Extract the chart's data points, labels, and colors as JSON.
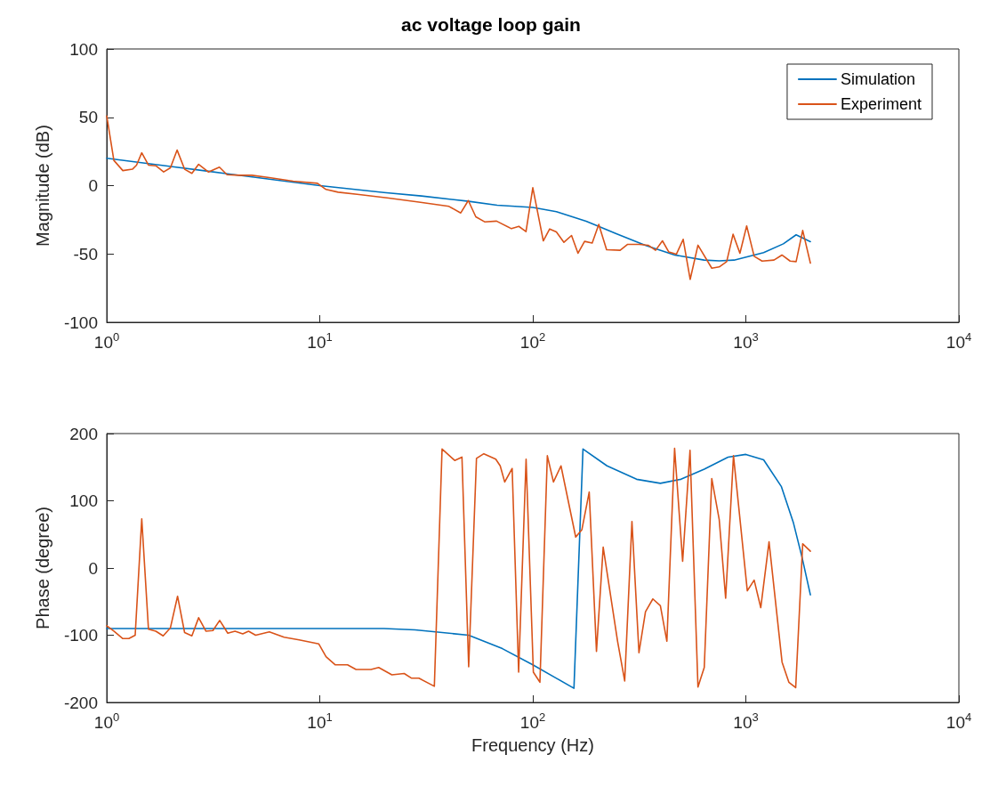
{
  "chart_data": [
    {
      "type": "line",
      "title": "ac voltage loop gain",
      "ylabel": "Magnitude (dB)",
      "log": "x",
      "legend": "top right",
      "xlim": [
        1,
        10000
      ],
      "xticks": [
        {
          "value": 1,
          "label": "10$^{0}$"
        },
        {
          "value": 10,
          "label": "10$^{1}$"
        },
        {
          "value": 100,
          "label": "10$^{2}$"
        },
        {
          "value": 1000,
          "label": "10$^{3}$"
        },
        {
          "value": 10000,
          "label": "10$^{4}$"
        }
      ],
      "ylim": [
        -100,
        100
      ],
      "yticks": [
        -100,
        -50,
        0,
        50,
        100
      ],
      "series": [
        {
          "name": "Simulation",
          "color": "#0072bd",
          "x": [
            1,
            2,
            3,
            5,
            10,
            20,
            30,
            50,
            68,
            100,
            129,
            178,
            245,
            337,
            464,
            637,
            750,
            880,
            1212,
            1500,
            1722,
            2009
          ],
          "values": [
            20,
            14,
            10.5,
            6,
            0,
            -5,
            -7.6,
            -11.5,
            -14.3,
            -16,
            -19,
            -26,
            -35,
            -43.6,
            -50.8,
            -54.5,
            -55,
            -54.5,
            -49,
            -42.6,
            -36,
            -41
          ]
        },
        {
          "name": "Experiment",
          "color": "#d95319",
          "x": [
            1,
            1.08,
            1.19,
            1.32,
            1.38,
            1.46,
            1.57,
            1.7,
            1.85,
            1.99,
            2.14,
            2.32,
            2.51,
            2.7,
            3,
            3.38,
            3.67,
            4.2,
            4.8,
            5.8,
            7.5,
            9.75,
            10.7,
            12.2,
            15.3,
            21.1,
            29.2,
            40.4,
            45.9,
            49.8,
            54,
            59.4,
            67.6,
            79.4,
            86,
            92.9,
            100,
            112,
            120,
            129,
            140,
            152,
            163,
            175,
            190,
            204,
            222,
            257,
            278,
            316,
            348,
            377,
            406,
            435,
            472,
            508,
            548,
            596,
            692,
            750,
            813,
            871,
            938,
            1009,
            1094,
            1192,
            1355,
            1477,
            1614,
            1722,
            1849,
            2009
          ],
          "values": [
            51,
            18.5,
            11,
            12,
            15,
            24,
            15,
            14.5,
            10,
            13,
            26,
            12,
            9,
            15.6,
            10,
            13.5,
            8,
            7.6,
            7.6,
            5.9,
            3.3,
            1.7,
            -2.8,
            -4.8,
            -6.5,
            -9.1,
            -12,
            -15.2,
            -20,
            -10.9,
            -22.8,
            -26.5,
            -26,
            -31.5,
            -29.8,
            -33.7,
            -1.5,
            -40.4,
            -31.7,
            -33.9,
            -41.5,
            -36.5,
            -49.5,
            -40.8,
            -42,
            -28.4,
            -46.9,
            -47.3,
            -43,
            -43,
            -43.6,
            -47.3,
            -40.4,
            -48.6,
            -50.2,
            -39.3,
            -68.6,
            -43.6,
            -60.4,
            -59.5,
            -55.6,
            -35.6,
            -49.5,
            -29.5,
            -51.7,
            -55.2,
            -54.5,
            -50.8,
            -55.2,
            -55.6,
            -32.8,
            -56.7
          ]
        }
      ]
    },
    {
      "type": "line",
      "xlabel": "Frequency (Hz)",
      "ylabel": "Phase (degree)",
      "log": "x",
      "xlim": [
        1,
        10000
      ],
      "xticks": [
        {
          "value": 1,
          "label": "10$^{0}$"
        },
        {
          "value": 10,
          "label": "10$^{1}$"
        },
        {
          "value": 100,
          "label": "10$^{2}$"
        },
        {
          "value": 1000,
          "label": "10$^{3}$"
        },
        {
          "value": 10000,
          "label": "10$^{4}$"
        }
      ],
      "ylim": [
        -200,
        200
      ],
      "yticks": [
        -200,
        -100,
        0,
        100,
        200
      ],
      "series": [
        {
          "color": "#0072bd",
          "x": [
            1,
            10,
            20,
            28,
            50,
            72,
            100,
            129,
            156,
            172,
            223,
            307,
            397,
            496,
            638,
            825,
            1000,
            1212,
            1469,
            1670,
            1838,
            2009
          ],
          "values": [
            -90,
            -90,
            -90,
            -92,
            -100,
            -120,
            -144,
            -164,
            -179,
            177,
            152,
            132,
            126,
            132,
            147,
            165,
            169,
            161,
            121,
            68,
            15,
            -40
          ]
        },
        {
          "color": "#d95319",
          "x": [
            1,
            1.08,
            1.19,
            1.27,
            1.36,
            1.46,
            1.57,
            1.7,
            1.84,
            1.99,
            2.15,
            2.32,
            2.51,
            2.7,
            2.92,
            3.15,
            3.39,
            3.7,
            4,
            4.35,
            4.63,
            5,
            5.8,
            6.8,
            8,
            9.9,
            10.7,
            11.8,
            13.5,
            14.8,
            17.4,
            18.9,
            21.8,
            24.9,
            27,
            29.2,
            34.5,
            37.5,
            43,
            46.5,
            50,
            54.4,
            58.9,
            67,
            70.3,
            73.8,
            80,
            85.8,
            93,
            100.6,
            108,
            117,
            125,
            135.6,
            159,
            170,
            184,
            199,
            214,
            250,
            270,
            292,
            315,
            338,
            366,
            397,
            426,
            463,
            505,
            547,
            596,
            638,
            692,
            750,
            804,
            875,
            1016,
            1094,
            1175,
            1285,
            1479,
            1592,
            1714,
            1849,
            2009
          ],
          "values": [
            -86,
            -94,
            -105,
            -105,
            -100,
            73,
            -91,
            -94,
            -101,
            -89,
            -42,
            -96,
            -101,
            -74,
            -94,
            -93,
            -78,
            -97,
            -94,
            -98,
            -94,
            -100,
            -95,
            -103,
            -107,
            -113,
            -132,
            -144,
            -144,
            -151,
            -151,
            -148,
            -159,
            -157,
            -164,
            -164,
            -176,
            177,
            160,
            165,
            -147,
            163,
            170,
            162,
            152,
            128,
            148,
            -155,
            162,
            -155,
            -170,
            167,
            128,
            152,
            46,
            57,
            113,
            -124,
            31,
            -109,
            -168,
            69,
            -126,
            -65,
            -46,
            -56,
            -109,
            178,
            10,
            175,
            -177,
            -148,
            133,
            72,
            -45,
            167,
            -34,
            -18,
            -59,
            39,
            -140,
            -170,
            -178,
            36,
            25
          ]
        }
      ]
    }
  ]
}
